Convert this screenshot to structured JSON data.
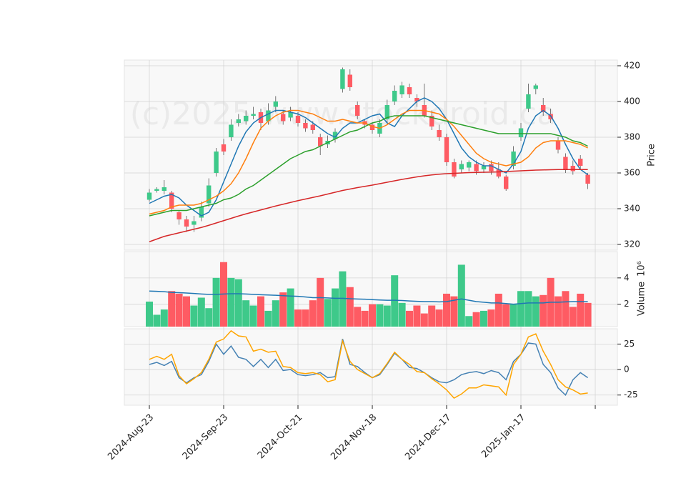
{
  "chart_data": {
    "type": "candlestick",
    "watermark": "(c)2025 www.stockdroid.ca",
    "categories": [
      "2024-Aug-23",
      null,
      null,
      null,
      null,
      null,
      null,
      null,
      null,
      null,
      "2024-Sep-23",
      null,
      null,
      null,
      null,
      null,
      null,
      null,
      null,
      null,
      "2024-Oct-21",
      null,
      null,
      null,
      null,
      null,
      null,
      null,
      null,
      null,
      "2024-Nov-18",
      null,
      null,
      null,
      null,
      null,
      null,
      null,
      null,
      null,
      "2024-Dec-17",
      null,
      null,
      null,
      null,
      null,
      null,
      null,
      null,
      null,
      "2025-Jan-17",
      null,
      null,
      null,
      null,
      null,
      null,
      null,
      null,
      null
    ],
    "open": [
      345,
      350,
      350,
      349,
      338,
      334,
      331,
      335,
      343,
      360,
      376,
      380,
      388,
      389,
      392,
      394,
      389,
      397,
      393,
      391,
      392,
      388,
      387,
      380,
      376,
      379,
      407,
      415,
      398,
      389,
      387,
      382,
      390,
      400,
      404,
      408,
      402,
      398,
      392,
      384,
      380,
      366,
      362,
      363,
      365,
      362,
      365,
      362,
      358,
      364,
      380,
      396,
      407,
      398,
      393,
      378,
      369,
      364,
      368,
      359
    ],
    "high": [
      351,
      352,
      356,
      350,
      339,
      336,
      336,
      344,
      357,
      374,
      379,
      390,
      393,
      395,
      397,
      396,
      399,
      403,
      395,
      397,
      394,
      390,
      389,
      382,
      381,
      385,
      419,
      418,
      400,
      390,
      388,
      390,
      401,
      409,
      411,
      410,
      404,
      410,
      395,
      387,
      382,
      368,
      367,
      367,
      367,
      366,
      367,
      366,
      359,
      375,
      388,
      410,
      410,
      402,
      396,
      380,
      371,
      367,
      370,
      360
    ],
    "low": [
      344,
      349,
      348,
      338,
      331,
      327,
      327,
      333,
      341,
      358,
      370,
      378,
      386,
      387,
      390,
      384,
      387,
      394,
      387,
      389,
      386,
      383,
      382,
      370,
      374,
      377,
      405,
      406,
      390,
      385,
      382,
      380,
      388,
      398,
      402,
      402,
      397,
      391,
      384,
      378,
      364,
      357,
      360,
      361,
      359,
      360,
      359,
      357,
      350,
      362,
      378,
      394,
      404,
      392,
      388,
      371,
      360,
      359,
      362,
      351
    ],
    "close": [
      349,
      351,
      352,
      340,
      334,
      330,
      333,
      341,
      353,
      372,
      372,
      387,
      390,
      392,
      393,
      388,
      395,
      400,
      389,
      394,
      388,
      385,
      384,
      375,
      378,
      383,
      418,
      408,
      392,
      387,
      384,
      388,
      398,
      406,
      409,
      404,
      400,
      392,
      386,
      380,
      366,
      358,
      365,
      366,
      361,
      364,
      361,
      358,
      351,
      372,
      385,
      404,
      409,
      394,
      390,
      373,
      362,
      361,
      364,
      354
    ],
    "colors": {
      "up": "#3ec98a",
      "down": "#fe5b63"
    },
    "ma_series": [
      {
        "color": "#1f77b4",
        "values": [
          343,
          345,
          347,
          348,
          346,
          342,
          339,
          336,
          338,
          345,
          355,
          365,
          375,
          383,
          388,
          391,
          393,
          395,
          395,
          394,
          393,
          391,
          388,
          385,
          382,
          380,
          385,
          388,
          388,
          390,
          392,
          393,
          388,
          386,
          392,
          396,
          400,
          402,
          400,
          396,
          390,
          382,
          374,
          369,
          366,
          364,
          364,
          362,
          360,
          365,
          372,
          385,
          392,
          395,
          392,
          385,
          376,
          368,
          362,
          359
        ]
      },
      {
        "color": "#ff7f0e",
        "values": [
          337,
          338,
          339,
          341,
          342,
          342,
          342,
          343,
          345,
          347,
          350,
          354,
          360,
          368,
          377,
          385,
          389,
          392,
          394,
          395,
          395,
          394,
          393,
          391,
          389,
          389,
          390,
          389,
          388,
          388,
          386,
          385,
          387,
          390,
          393,
          395,
          395,
          395,
          394,
          393,
          390,
          386,
          381,
          376,
          371,
          368,
          366,
          365,
          364,
          365,
          366,
          369,
          374,
          377,
          378,
          378,
          378,
          377,
          376,
          374
        ]
      },
      {
        "color": "#2ca02c",
        "values": [
          336,
          337,
          338,
          339,
          339,
          339,
          340,
          341,
          342,
          343,
          345,
          346,
          348,
          351,
          353,
          356,
          359,
          362,
          365,
          368,
          370,
          372,
          373,
          375,
          377,
          379,
          381,
          383,
          384,
          386,
          388,
          389,
          391,
          392,
          392,
          392,
          392,
          392,
          391,
          390,
          389,
          388,
          387,
          386,
          385,
          384,
          383,
          382,
          382,
          382,
          382,
          382,
          382,
          382,
          382,
          381,
          380,
          378,
          377,
          375
        ]
      },
      {
        "color": "#d62728",
        "values": [
          321.5,
          323,
          324.5,
          325.5,
          326.5,
          327.5,
          328.5,
          329.5,
          330.7,
          332,
          333.3,
          334.6,
          335.9,
          337.1,
          338.2,
          339.3,
          340.4,
          341.5,
          342.5,
          343.5,
          344.5,
          345.4,
          346.3,
          347.2,
          348.2,
          349.2,
          350.2,
          351,
          351.8,
          352.5,
          353.2,
          354,
          354.8,
          355.6,
          356.4,
          357.1,
          357.8,
          358.4,
          358.9,
          359.3,
          359.6,
          359.8,
          360,
          360.2,
          360.3,
          360.4,
          360.5,
          360.6,
          360.8,
          361,
          361.2,
          361.4,
          361.6,
          361.7,
          361.8,
          361.9,
          361.9,
          361.9,
          361.9,
          361.9
        ]
      }
    ],
    "ylabel": "Price",
    "ylim": [
      316.8,
      423.2
    ],
    "yticks": [
      320,
      340,
      360,
      380,
      400,
      420
    ],
    "volume": [
      2.2,
      1.2,
      1.6,
      3.0,
      2.8,
      2.6,
      1.9,
      2.5,
      1.7,
      4.0,
      5.2,
      4.0,
      3.9,
      2.3,
      1.9,
      2.6,
      1.5,
      2.3,
      2.9,
      3.2,
      1.6,
      1.6,
      2.3,
      4.0,
      2.4,
      3.2,
      4.5,
      3.3,
      1.8,
      1.5,
      2.0,
      2.0,
      1.9,
      4.2,
      2.1,
      1.5,
      1.9,
      1.3,
      1.9,
      1.6,
      2.8,
      2.6,
      5.0,
      1.1,
      1.4,
      1.5,
      1.6,
      2.8,
      2.0,
      2.0,
      3.0,
      3.0,
      2.6,
      2.7,
      4.0,
      2.6,
      3.0,
      1.8,
      2.8,
      2.1
    ],
    "volume_ma": {
      "color": "#1f77b4",
      "values": [
        3.0,
        2.98,
        2.95,
        2.9,
        2.88,
        2.85,
        2.82,
        2.78,
        2.75,
        2.75,
        2.78,
        2.8,
        2.8,
        2.78,
        2.75,
        2.72,
        2.7,
        2.68,
        2.65,
        2.62,
        2.6,
        2.55,
        2.5,
        2.5,
        2.48,
        2.45,
        2.45,
        2.42,
        2.4,
        2.38,
        2.35,
        2.32,
        2.3,
        2.3,
        2.28,
        2.25,
        2.22,
        2.2,
        2.2,
        2.18,
        2.2,
        2.3,
        2.4,
        2.3,
        2.2,
        2.15,
        2.1,
        2.1,
        2.05,
        2.0,
        2.05,
        2.1,
        2.1,
        2.1,
        2.15,
        2.15,
        2.18,
        2.2,
        2.2,
        2.2
      ]
    },
    "volume_ylabel": "Volume",
    "volume_unit": "10⁶",
    "volume_ylim": [
      0.3,
      6.0
    ],
    "volume_yticks": [
      2,
      4
    ],
    "oscillator": [
      {
        "color": "#4682b4",
        "values": [
          5,
          7,
          4,
          8,
          -8,
          -13,
          -8,
          -5,
          8,
          25,
          15,
          23,
          12,
          10,
          3,
          10,
          2,
          10,
          -1,
          0,
          -5,
          -6,
          -5,
          -3,
          -8,
          -7,
          30,
          5,
          3,
          -3,
          -8,
          -5,
          5,
          16,
          10,
          2,
          1,
          -3,
          -8,
          -12,
          -13,
          -10,
          -5,
          -3,
          -2,
          -4,
          -1,
          -3,
          -10,
          8,
          15,
          26,
          25,
          5,
          -3,
          -18,
          -25,
          -10,
          -3,
          -8
        ]
      },
      {
        "color": "#ffa500",
        "values": [
          10,
          13,
          10,
          15,
          -6,
          -14,
          -9,
          -3,
          10,
          27,
          30,
          38,
          33,
          32,
          18,
          20,
          17,
          18,
          3,
          2,
          -3,
          -4,
          -3,
          -5,
          -12,
          -10,
          28,
          8,
          0,
          -4,
          -8,
          -4,
          6,
          17,
          10,
          5,
          -2,
          -3,
          -9,
          -14,
          -20,
          -28,
          -24,
          -18,
          -18,
          -15,
          -16,
          -17,
          -25,
          5,
          15,
          32,
          35,
          18,
          5,
          -10,
          -17,
          -20,
          -24,
          -23
        ]
      }
    ],
    "osc_ylim": [
      -35,
      40
    ],
    "osc_yticks": [
      25,
      0,
      -25
    ],
    "grid": true
  }
}
